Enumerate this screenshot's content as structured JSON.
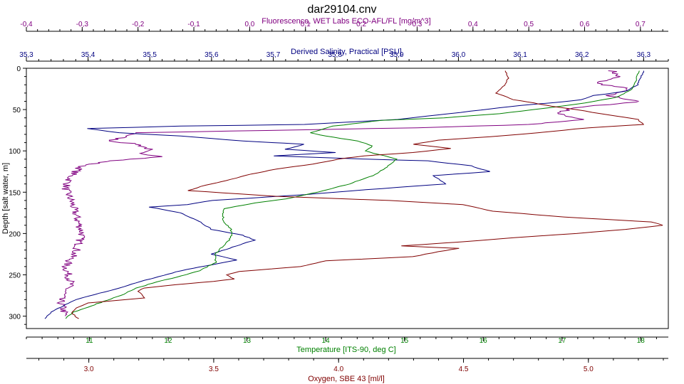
{
  "chart_data": {
    "type": "line",
    "title": "dar29104.cnv",
    "y_axis": {
      "label": "Depth [salt water, m]",
      "range": [
        0,
        315
      ],
      "inverted": true,
      "ticks": [
        0,
        50,
        100,
        150,
        200,
        250,
        300
      ],
      "tick_labels": [
        "0",
        "50",
        "100",
        "150",
        "200",
        "250",
        "300"
      ]
    },
    "x_axes": [
      {
        "id": "fluorescence",
        "label": "Fluorescence, WET Labs ECO-AFL/FL [mg/m^3]",
        "position": "top-outer",
        "color": "#800080",
        "range": [
          -0.4,
          0.75
        ],
        "ticks": [
          -0.4,
          -0.3,
          -0.2,
          -0.1,
          0.0,
          0.1,
          0.2,
          0.3,
          0.4,
          0.5,
          0.6,
          0.7
        ],
        "tick_labels": [
          "-0,4",
          "-0,3",
          "-0,2",
          "-0,1",
          "0,0",
          "0,1",
          "0,2",
          "0,3",
          "0,4",
          "0,5",
          "0,6",
          "0,7"
        ]
      },
      {
        "id": "salinity",
        "label": "Derived Salinity, Practical [PSU]",
        "position": "top-inner",
        "color": "#000080",
        "range": [
          35.3,
          36.34
        ],
        "ticks": [
          35.3,
          35.4,
          35.5,
          35.6,
          35.7,
          35.8,
          35.9,
          36.0,
          36.1,
          36.2,
          36.3
        ],
        "tick_labels": [
          "35,3",
          "35,4",
          "35,5",
          "35,6",
          "35,7",
          "35,8",
          "35,9",
          "36,0",
          "36,1",
          "36,2",
          "36,3"
        ]
      },
      {
        "id": "temperature",
        "label": "Temperature [ITS-90, deg C]",
        "position": "bottom-inner",
        "color": "#008000",
        "range": [
          10.2,
          18.35
        ],
        "ticks": [
          11,
          12,
          13,
          14,
          15,
          16,
          17,
          18
        ],
        "tick_labels": [
          "11",
          "12",
          "13",
          "14",
          "15",
          "16",
          "17",
          "18"
        ]
      },
      {
        "id": "oxygen",
        "label": "Oxygen, SBE 43 [ml/l]",
        "position": "bottom-outer",
        "color": "#800000",
        "range": [
          2.75,
          5.32
        ],
        "ticks": [
          3.0,
          3.5,
          4.0,
          4.5,
          5.0
        ],
        "tick_labels": [
          "3.0",
          "3.5",
          "4.0",
          "4.5",
          "5.0"
        ]
      }
    ],
    "grid": false,
    "legend": "none",
    "series": [
      {
        "axis": "fluorescence",
        "color": "#800080",
        "noisy": true,
        "points": [
          [
            0.65,
            3
          ],
          [
            0.66,
            10
          ],
          [
            0.62,
            18
          ],
          [
            0.68,
            25
          ],
          [
            0.64,
            33
          ],
          [
            0.7,
            40
          ],
          [
            0.58,
            48
          ],
          [
            0.55,
            55
          ],
          [
            0.6,
            62
          ],
          [
            0.5,
            68
          ],
          [
            0.3,
            72
          ],
          [
            0.05,
            75
          ],
          [
            -0.2,
            78
          ],
          [
            -0.22,
            82
          ],
          [
            -0.25,
            88
          ],
          [
            -0.2,
            92
          ],
          [
            -0.18,
            98
          ],
          [
            -0.2,
            103
          ],
          [
            -0.15,
            107
          ],
          [
            -0.25,
            112
          ],
          [
            -0.3,
            118
          ],
          [
            -0.32,
            130
          ],
          [
            -0.33,
            145
          ],
          [
            -0.32,
            160
          ],
          [
            -0.31,
            180
          ],
          [
            -0.3,
            200
          ],
          [
            -0.31,
            220
          ],
          [
            -0.33,
            240
          ],
          [
            -0.32,
            260
          ],
          [
            -0.34,
            280
          ],
          [
            -0.33,
            300
          ]
        ]
      },
      {
        "axis": "salinity",
        "color": "#000080",
        "noisy": false,
        "points": [
          [
            36.3,
            3
          ],
          [
            36.29,
            20
          ],
          [
            36.27,
            28
          ],
          [
            36.22,
            33
          ],
          [
            36.2,
            38
          ],
          [
            36.15,
            42
          ],
          [
            36.1,
            45
          ],
          [
            36.02,
            52
          ],
          [
            35.9,
            62
          ],
          [
            35.75,
            68
          ],
          [
            35.55,
            70
          ],
          [
            35.4,
            73
          ],
          [
            35.45,
            78
          ],
          [
            35.55,
            82
          ],
          [
            35.65,
            88
          ],
          [
            35.75,
            92
          ],
          [
            35.72,
            98
          ],
          [
            35.8,
            102
          ],
          [
            35.7,
            106
          ],
          [
            35.85,
            110
          ],
          [
            35.95,
            112
          ],
          [
            36.02,
            118
          ],
          [
            36.05,
            125
          ],
          [
            35.96,
            130
          ],
          [
            35.98,
            140
          ],
          [
            35.85,
            147
          ],
          [
            35.75,
            153
          ],
          [
            35.6,
            160
          ],
          [
            35.56,
            165
          ],
          [
            35.5,
            168
          ],
          [
            35.55,
            175
          ],
          [
            35.58,
            185
          ],
          [
            35.6,
            195
          ],
          [
            35.65,
            202
          ],
          [
            35.67,
            208
          ],
          [
            35.64,
            215
          ],
          [
            35.6,
            225
          ],
          [
            35.64,
            232
          ],
          [
            35.55,
            245
          ],
          [
            35.5,
            255
          ],
          [
            35.45,
            266
          ],
          [
            35.38,
            280
          ],
          [
            35.34,
            295
          ],
          [
            35.33,
            303
          ]
        ]
      },
      {
        "axis": "temperature",
        "color": "#008000",
        "noisy": false,
        "points": [
          [
            17.98,
            3
          ],
          [
            17.9,
            25
          ],
          [
            17.7,
            35
          ],
          [
            17.3,
            42
          ],
          [
            16.9,
            47
          ],
          [
            16.2,
            55
          ],
          [
            15.5,
            60
          ],
          [
            14.7,
            63
          ],
          [
            14.1,
            70
          ],
          [
            13.8,
            78
          ],
          [
            14.0,
            82
          ],
          [
            14.4,
            88
          ],
          [
            14.6,
            94
          ],
          [
            14.5,
            100
          ],
          [
            14.9,
            110
          ],
          [
            14.8,
            118
          ],
          [
            14.6,
            130
          ],
          [
            14.3,
            140
          ],
          [
            13.9,
            150
          ],
          [
            13.5,
            158
          ],
          [
            13.1,
            163
          ],
          [
            12.7,
            170
          ],
          [
            12.7,
            185
          ],
          [
            12.8,
            195
          ],
          [
            12.8,
            205
          ],
          [
            12.7,
            215
          ],
          [
            12.6,
            225
          ],
          [
            12.6,
            235
          ],
          [
            12.4,
            245
          ],
          [
            12.1,
            253
          ],
          [
            11.8,
            260
          ],
          [
            11.6,
            266
          ],
          [
            11.4,
            275
          ],
          [
            11.1,
            285
          ],
          [
            10.8,
            295
          ],
          [
            10.7,
            303
          ]
        ]
      },
      {
        "axis": "oxygen",
        "color": "#800000",
        "noisy": false,
        "points": [
          [
            4.67,
            3
          ],
          [
            4.68,
            12
          ],
          [
            4.66,
            22
          ],
          [
            4.63,
            30
          ],
          [
            4.7,
            38
          ],
          [
            4.78,
            42
          ],
          [
            4.85,
            46
          ],
          [
            4.95,
            50
          ],
          [
            5.05,
            55
          ],
          [
            5.2,
            62
          ],
          [
            5.22,
            68
          ],
          [
            5.0,
            72
          ],
          [
            4.8,
            78
          ],
          [
            4.6,
            83
          ],
          [
            4.4,
            87
          ],
          [
            4.3,
            92
          ],
          [
            4.45,
            97
          ],
          [
            4.3,
            102
          ],
          [
            4.1,
            106
          ],
          [
            4.0,
            110
          ],
          [
            3.9,
            116
          ],
          [
            3.75,
            122
          ],
          [
            3.65,
            128
          ],
          [
            3.55,
            136
          ],
          [
            3.45,
            143
          ],
          [
            3.4,
            148
          ],
          [
            3.75,
            155
          ],
          [
            4.2,
            160
          ],
          [
            4.5,
            165
          ],
          [
            4.62,
            173
          ],
          [
            4.9,
            180
          ],
          [
            5.25,
            186
          ],
          [
            5.3,
            190
          ],
          [
            5.15,
            195
          ],
          [
            4.95,
            200
          ],
          [
            4.7,
            205
          ],
          [
            4.5,
            210
          ],
          [
            4.25,
            215
          ],
          [
            4.48,
            218
          ],
          [
            4.4,
            222
          ],
          [
            4.3,
            228
          ],
          [
            3.95,
            233
          ],
          [
            3.85,
            240
          ],
          [
            3.6,
            246
          ],
          [
            3.55,
            250
          ],
          [
            3.58,
            255
          ],
          [
            3.5,
            258
          ],
          [
            3.35,
            262
          ],
          [
            3.22,
            266
          ],
          [
            3.2,
            270
          ],
          [
            3.22,
            278
          ],
          [
            3.0,
            284
          ],
          [
            2.95,
            290
          ],
          [
            2.93,
            296
          ],
          [
            2.96,
            303
          ]
        ]
      }
    ]
  }
}
